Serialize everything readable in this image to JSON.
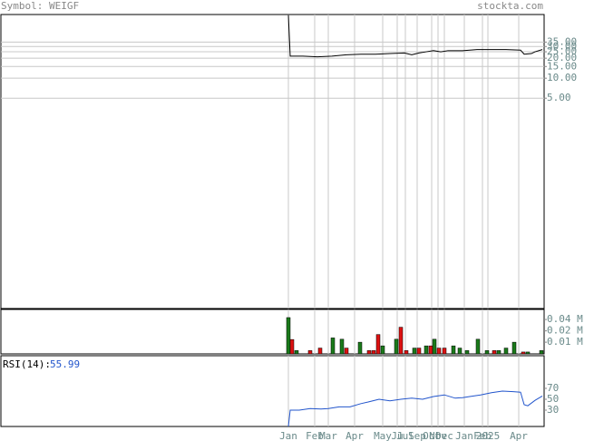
{
  "chart_data": [
    {
      "type": "line",
      "title": "Symbol: WEIGF",
      "source": "stockta.com",
      "x": [
        0,
        0.5,
        4,
        8,
        12,
        16,
        20,
        24,
        28,
        32,
        34,
        36,
        38,
        40,
        42,
        44,
        48,
        52,
        56,
        60,
        64,
        65,
        67,
        68,
        70
      ],
      "values": [
        90,
        21.5,
        21.5,
        21,
        21.5,
        22.5,
        23,
        23,
        23.5,
        24,
        22.5,
        24,
        25,
        26,
        25,
        26,
        26,
        27,
        27,
        27,
        26.5,
        23,
        23.5,
        25,
        27
      ],
      "color": "#000000",
      "log_scale": true,
      "grid": true,
      "ylim": [
        0.0034,
        91
      ],
      "yticks": [
        {
          "value": 35,
          "label": "35.00"
        },
        {
          "value": 30,
          "label": "30.00"
        },
        {
          "value": 25,
          "label": "25.00"
        },
        {
          "value": 20,
          "label": "20.00"
        },
        {
          "value": 15,
          "label": "15.00"
        },
        {
          "value": 10,
          "label": "10.00"
        },
        {
          "value": 5,
          "label": "5.00"
        }
      ]
    },
    {
      "type": "bar",
      "x": [
        0,
        1,
        2.25,
        6,
        8.75,
        12.25,
        14.75,
        16,
        19.75,
        22.25,
        23.5,
        24.75,
        26,
        29.75,
        31,
        32.5,
        34.75,
        36,
        38,
        39.25,
        40.25,
        41.5,
        43,
        45.5,
        47.25,
        49.25,
        52.25,
        54.75,
        56.75,
        58,
        60,
        62.25,
        64.75,
        66,
        69.75
      ],
      "values": [
        0.045,
        0.0118,
        0.006,
        0.006,
        0.007,
        0.013,
        0.012,
        0.007,
        0.01,
        0.006,
        0.006,
        0.016,
        0.008,
        0.012,
        0.025,
        0.006,
        0.007,
        0.007,
        0.008,
        0.008,
        0.012,
        0.007,
        0.007,
        0.008,
        0.007,
        0.006,
        0.012,
        0.006,
        0.006,
        0.006,
        0.007,
        0.01,
        0.0055,
        0.0055,
        0.006
      ],
      "colors": [
        "#1a7a1a",
        "#dd1111",
        "#1a7a1a",
        "#dd1111",
        "#dd1111",
        "#1a7a1a",
        "#1a7a1a",
        "#dd1111",
        "#1a7a1a",
        "#dd1111",
        "#dd1111",
        "#dd1111",
        "#1a7a1a",
        "#1a7a1a",
        "#dd1111",
        "#dd1111",
        "#1a7a1a",
        "#dd1111",
        "#1a7a1a",
        "#dd1111",
        "#1a7a1a",
        "#dd1111",
        "#dd1111",
        "#1a7a1a",
        "#1a7a1a",
        "#1a7a1a",
        "#1a7a1a",
        "#1a7a1a",
        "#dd1111",
        "#1a7a1a",
        "#1a7a1a",
        "#1a7a1a",
        "#dd1111",
        "#1a7a1a",
        "#1a7a1a"
      ],
      "log_scale": true,
      "ylim": [
        0.0049,
        0.074
      ],
      "yticks": [
        {
          "value": 0.04,
          "label": "0.04 M"
        },
        {
          "value": 0.02,
          "label": "0.02 M"
        },
        {
          "value": 0.01,
          "label": "0.01 M"
        }
      ]
    },
    {
      "type": "line",
      "label": "RSI(14):",
      "current": 55.99,
      "x": [
        0,
        0.5,
        3,
        6,
        9,
        11,
        14,
        17,
        20,
        22,
        25,
        28,
        31,
        34,
        37,
        40,
        43,
        46,
        48,
        50,
        53,
        56,
        59,
        62,
        64,
        65,
        66,
        68,
        70
      ],
      "values": [
        0,
        30,
        30,
        33,
        32,
        33,
        36,
        36,
        42,
        45,
        50,
        47,
        50,
        52,
        50,
        55,
        58,
        52,
        53,
        55,
        58,
        62,
        65,
        64,
        63,
        40,
        38,
        48,
        55.99
      ],
      "color": "#2255cc",
      "ylim": [
        0,
        130
      ],
      "yticks": [
        70,
        50,
        30
      ],
      "xlim": [
        -79.25,
        70.5
      ],
      "xticks": [
        {
          "value": 0,
          "label": "Jan"
        },
        {
          "value": 7.25,
          "label": "Feb"
        },
        {
          "value": 11,
          "label": "Mar"
        },
        {
          "value": 18.25,
          "label": "Apr"
        },
        {
          "value": 26,
          "label": "May"
        },
        {
          "value": 30,
          "label": "Ju"
        },
        {
          "value": 32.25,
          "label": "Jul"
        },
        {
          "value": 35.5,
          "label": "Sep"
        },
        {
          "value": 39.5,
          "label": "Oct"
        },
        {
          "value": 41.25,
          "label": "Nov"
        },
        {
          "value": 43,
          "label": "Dec"
        },
        {
          "value": 48.5,
          "label": "Jan"
        },
        {
          "value": 53.5,
          "label": "Feb"
        },
        {
          "value": 55,
          "label": "2025"
        },
        {
          "value": 63.5,
          "label": "Apr"
        }
      ]
    }
  ]
}
